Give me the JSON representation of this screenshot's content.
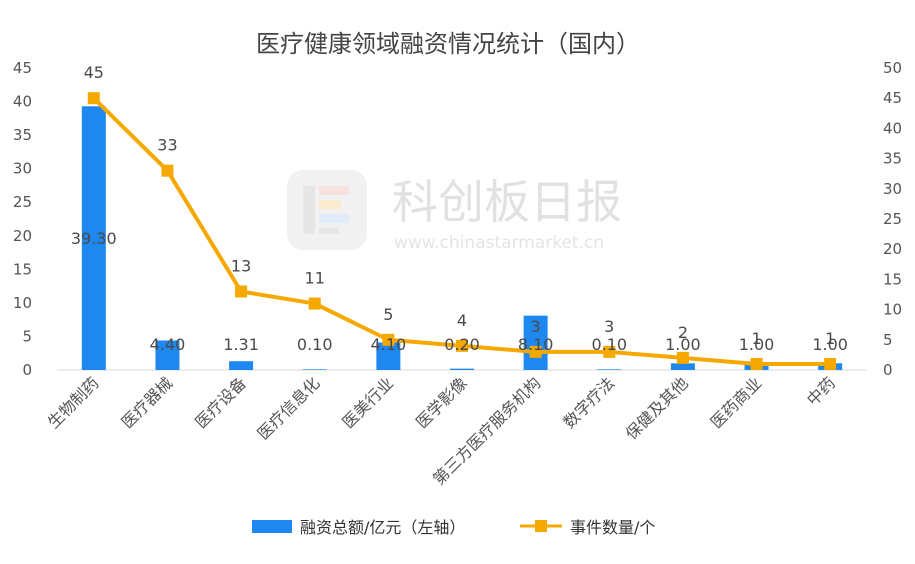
{
  "chart_data": {
    "type": "bar+line",
    "title": "医疗健康领域融资情况统计（国内）",
    "categories": [
      "生物制药",
      "医疗器械",
      "医疗设备",
      "医疗信息化",
      "医美行业",
      "医学影像",
      "第三方医疗服务机构",
      "数字疗法",
      "保健及其他",
      "医药商业",
      "中药"
    ],
    "series": [
      {
        "name": "融资总额/亿元（左轴）",
        "type": "bar",
        "axis": "left",
        "color": "#1e88f0",
        "values": [
          39.3,
          4.4,
          1.31,
          0.1,
          4.1,
          0.2,
          8.1,
          0.1,
          1.0,
          1.0,
          1.0
        ],
        "labels": [
          "39.30",
          "4.40",
          "1.31",
          "0.10",
          "4.10",
          "0.20",
          "8.10",
          "0.10",
          "1.00",
          "1.00",
          "1.00"
        ]
      },
      {
        "name": "事件数量/个",
        "type": "line",
        "axis": "right",
        "color": "#f5a800",
        "values": [
          45,
          33,
          13,
          11,
          5,
          4,
          3,
          3,
          2,
          1,
          1
        ],
        "labels": [
          "45",
          "33",
          "13",
          "11",
          "5",
          "4",
          "3",
          "3",
          "2",
          "1",
          "1"
        ]
      }
    ],
    "y_left": {
      "min": 0,
      "max": 45,
      "ticks": [
        0,
        5,
        10,
        15,
        20,
        25,
        30,
        35,
        40,
        45
      ]
    },
    "y_right": {
      "min": 0,
      "max": 50,
      "ticks": [
        0,
        5,
        10,
        15,
        20,
        25,
        30,
        35,
        40,
        45,
        50
      ]
    },
    "grid": false,
    "legend_position": "bottom"
  },
  "watermark": {
    "brand": "科创板日报",
    "url": "www.chinastarmarket.cn"
  }
}
